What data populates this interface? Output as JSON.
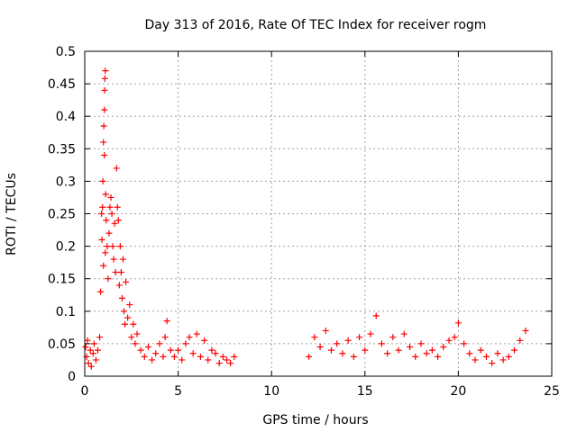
{
  "chart_data": {
    "type": "scatter",
    "title": "Day 313 of 2016, Rate Of TEC Index for receiver rogm",
    "xlabel": "GPS time / hours",
    "ylabel": "ROTI / TECUs",
    "xlim": [
      0,
      25
    ],
    "ylim": [
      0,
      0.5
    ],
    "x_ticks": [
      0,
      5,
      10,
      15,
      20,
      25
    ],
    "x_tick_labels": [
      "0",
      "5",
      "10",
      "15",
      "20",
      "25"
    ],
    "y_ticks": [
      0,
      0.05,
      0.1,
      0.15,
      0.2,
      0.25,
      0.3,
      0.35,
      0.4,
      0.45,
      0.5
    ],
    "y_tick_labels": [
      "0",
      "0.05",
      "0.1",
      "0.15",
      "0.2",
      "0.25",
      "0.3",
      "0.35",
      "0.4",
      "0.45",
      "0.5"
    ],
    "grid": true,
    "marker": "+",
    "marker_color": "#ff0000",
    "series": [
      {
        "name": "ROTI",
        "segments": [
          {
            "x_start": 0.0,
            "x_end": 8.1,
            "note": "active period, peak ~0.47 near 1.0 h"
          },
          {
            "x_start": 11.8,
            "x_end": 23.7,
            "note": "quiet period, values mostly below 0.06"
          }
        ],
        "points": [
          [
            0.05,
            0.045
          ],
          [
            0.1,
            0.03
          ],
          [
            0.15,
            0.055
          ],
          [
            0.2,
            0.02
          ],
          [
            0.3,
            0.04
          ],
          [
            0.35,
            0.015
          ],
          [
            0.45,
            0.035
          ],
          [
            0.5,
            0.05
          ],
          [
            0.6,
            0.025
          ],
          [
            0.7,
            0.04
          ],
          [
            0.8,
            0.06
          ],
          [
            0.85,
            0.13
          ],
          [
            0.9,
            0.25
          ],
          [
            0.92,
            0.21
          ],
          [
            0.95,
            0.26
          ],
          [
            0.97,
            0.3
          ],
          [
            1.0,
            0.36
          ],
          [
            1.02,
            0.385
          ],
          [
            1.05,
            0.41
          ],
          [
            1.06,
            0.44
          ],
          [
            1.08,
            0.458
          ],
          [
            1.1,
            0.47
          ],
          [
            1.05,
            0.34
          ],
          [
            1.12,
            0.28
          ],
          [
            1.15,
            0.24
          ],
          [
            1.1,
            0.19
          ],
          [
            1.0,
            0.17
          ],
          [
            1.2,
            0.2
          ],
          [
            1.25,
            0.15
          ],
          [
            1.3,
            0.22
          ],
          [
            1.35,
            0.26
          ],
          [
            1.4,
            0.275
          ],
          [
            1.45,
            0.25
          ],
          [
            1.5,
            0.2
          ],
          [
            1.55,
            0.18
          ],
          [
            1.6,
            0.235
          ],
          [
            1.65,
            0.16
          ],
          [
            1.7,
            0.32
          ],
          [
            1.75,
            0.26
          ],
          [
            1.8,
            0.24
          ],
          [
            1.85,
            0.14
          ],
          [
            1.9,
            0.2
          ],
          [
            1.95,
            0.16
          ],
          [
            2.0,
            0.12
          ],
          [
            2.05,
            0.18
          ],
          [
            2.1,
            0.1
          ],
          [
            2.15,
            0.08
          ],
          [
            2.2,
            0.145
          ],
          [
            2.3,
            0.09
          ],
          [
            2.4,
            0.11
          ],
          [
            2.5,
            0.06
          ],
          [
            2.6,
            0.08
          ],
          [
            2.7,
            0.05
          ],
          [
            2.8,
            0.065
          ],
          [
            3.0,
            0.04
          ],
          [
            3.2,
            0.03
          ],
          [
            3.4,
            0.045
          ],
          [
            3.6,
            0.025
          ],
          [
            3.8,
            0.035
          ],
          [
            4.0,
            0.05
          ],
          [
            4.2,
            0.03
          ],
          [
            4.3,
            0.06
          ],
          [
            4.4,
            0.085
          ],
          [
            4.6,
            0.04
          ],
          [
            4.8,
            0.03
          ],
          [
            5.0,
            0.04
          ],
          [
            5.2,
            0.025
          ],
          [
            5.4,
            0.05
          ],
          [
            5.6,
            0.06
          ],
          [
            5.8,
            0.035
          ],
          [
            6.0,
            0.065
          ],
          [
            6.2,
            0.03
          ],
          [
            6.4,
            0.055
          ],
          [
            6.6,
            0.025
          ],
          [
            6.8,
            0.04
          ],
          [
            7.0,
            0.035
          ],
          [
            7.2,
            0.02
          ],
          [
            7.4,
            0.03
          ],
          [
            7.6,
            0.025
          ],
          [
            7.8,
            0.02
          ],
          [
            8.0,
            0.03
          ],
          [
            12.0,
            0.03
          ],
          [
            12.3,
            0.06
          ],
          [
            12.6,
            0.045
          ],
          [
            12.9,
            0.07
          ],
          [
            13.2,
            0.04
          ],
          [
            13.5,
            0.05
          ],
          [
            13.8,
            0.035
          ],
          [
            14.1,
            0.055
          ],
          [
            14.4,
            0.03
          ],
          [
            14.7,
            0.06
          ],
          [
            15.0,
            0.04
          ],
          [
            15.3,
            0.065
          ],
          [
            15.6,
            0.093
          ],
          [
            15.9,
            0.05
          ],
          [
            16.2,
            0.035
          ],
          [
            16.5,
            0.06
          ],
          [
            16.8,
            0.04
          ],
          [
            17.1,
            0.065
          ],
          [
            17.4,
            0.045
          ],
          [
            17.7,
            0.03
          ],
          [
            18.0,
            0.05
          ],
          [
            18.3,
            0.035
          ],
          [
            18.6,
            0.04
          ],
          [
            18.9,
            0.03
          ],
          [
            19.2,
            0.045
          ],
          [
            19.5,
            0.055
          ],
          [
            19.8,
            0.06
          ],
          [
            20.0,
            0.082
          ],
          [
            20.3,
            0.05
          ],
          [
            20.6,
            0.035
          ],
          [
            20.9,
            0.025
          ],
          [
            21.2,
            0.04
          ],
          [
            21.5,
            0.03
          ],
          [
            21.8,
            0.02
          ],
          [
            22.1,
            0.035
          ],
          [
            22.4,
            0.025
          ],
          [
            22.7,
            0.03
          ],
          [
            23.0,
            0.04
          ],
          [
            23.3,
            0.055
          ],
          [
            23.6,
            0.07
          ]
        ]
      }
    ]
  }
}
